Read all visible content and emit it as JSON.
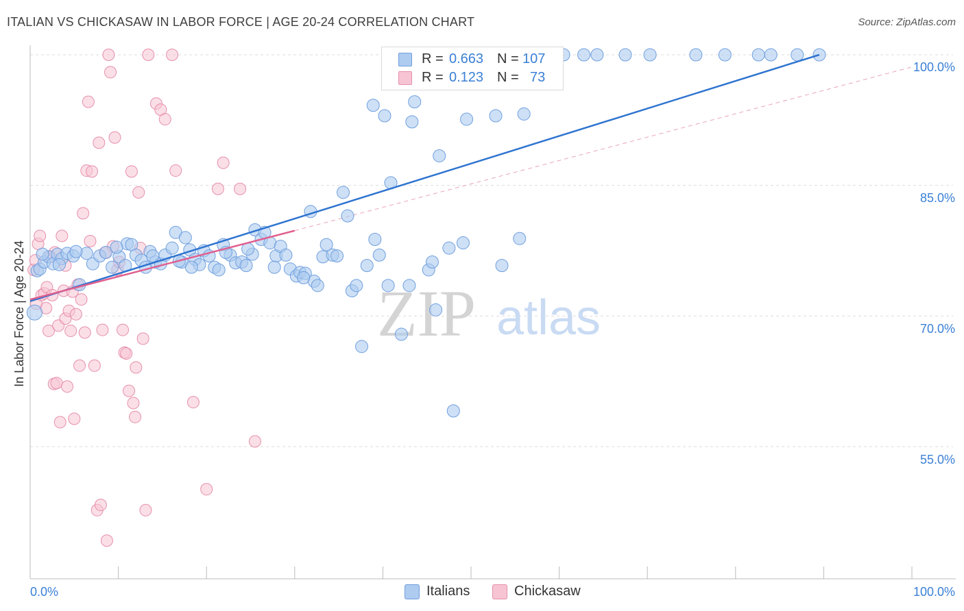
{
  "title": "ITALIAN VS CHICKASAW IN LABOR FORCE | AGE 20-24 CORRELATION CHART",
  "source": "Source: ZipAtlas.com",
  "watermark": {
    "zip": "ZIP",
    "atlas": "atlas"
  },
  "colors": {
    "italians_fill": "#aecbf0",
    "italians_stroke": "#6f9fde",
    "italians_line": "#2f74d0",
    "chickasaw_fill": "#f7c4d3",
    "chickasaw_stroke": "#e68fac",
    "chickasaw_line": "#e0608f",
    "axis_text": "#3a7fd5",
    "grid": "#dddddd"
  },
  "legend": {
    "italians": {
      "r_label": "R =",
      "r_value": "0.663",
      "n_label": "N =",
      "n_value": "107"
    },
    "chickasaw": {
      "r_label": "R =",
      "r_value": "0.123",
      "n_label": "N =",
      "n_value": "73"
    }
  },
  "bottom_legend": {
    "italians": "Italians",
    "chickasaw": "Chickasaw"
  },
  "chart_data": {
    "type": "scatter",
    "title": "ITALIAN VS CHICKASAW IN LABOR FORCE | AGE 20-24 CORRELATION CHART",
    "xlabel": "",
    "ylabel": "In Labor Force | Age 20-24",
    "xlim": [
      0,
      100
    ],
    "ylim": [
      40,
      101.5
    ],
    "x_tick_labels": [
      "0.0%",
      "100.0%"
    ],
    "y_tick_labels": [
      "55.0%",
      "70.0%",
      "85.0%",
      "100.0%"
    ],
    "y_ticks": [
      55,
      70,
      85,
      100
    ],
    "grid": true,
    "legend_position": "top-center",
    "series": [
      {
        "name": "Italians",
        "r": 0.663,
        "n": 107,
        "trend": {
          "x0": 0,
          "y0": 71.7,
          "x1": 89.5,
          "y1": 100
        },
        "points": [
          [
            0.5,
            70.4
          ],
          [
            0.8,
            75.2
          ],
          [
            1.1,
            75.4
          ],
          [
            1.6,
            76.2
          ],
          [
            2.1,
            76.8
          ],
          [
            2.6,
            76.0
          ],
          [
            3.1,
            77.1
          ],
          [
            3.6,
            76.6
          ],
          [
            4.2,
            77.2
          ],
          [
            4.9,
            76.9
          ],
          [
            5.6,
            73.6
          ],
          [
            6.4,
            77.2
          ],
          [
            7.1,
            76.0
          ],
          [
            7.9,
            76.9
          ],
          [
            8.6,
            77.3
          ],
          [
            9.3,
            75.6
          ],
          [
            10.1,
            76.8
          ],
          [
            10.8,
            75.8
          ],
          [
            11.0,
            78.3
          ],
          [
            11.5,
            78.2
          ],
          [
            12.0,
            77.0
          ],
          [
            12.6,
            76.4
          ],
          [
            13.1,
            75.6
          ],
          [
            13.6,
            77.4
          ],
          [
            14.2,
            76.2
          ],
          [
            14.8,
            76.0
          ],
          [
            15.3,
            77.0
          ],
          [
            16.1,
            77.8
          ],
          [
            16.5,
            79.6
          ],
          [
            17.2,
            76.2
          ],
          [
            17.6,
            79.0
          ],
          [
            18.1,
            77.6
          ],
          [
            18.7,
            76.5
          ],
          [
            19.2,
            75.9
          ],
          [
            19.7,
            77.5
          ],
          [
            20.3,
            76.9
          ],
          [
            20.9,
            75.6
          ],
          [
            21.4,
            75.3
          ],
          [
            21.9,
            78.2
          ],
          [
            22.7,
            77.0
          ],
          [
            23.3,
            76.1
          ],
          [
            24.0,
            76.2
          ],
          [
            24.5,
            75.8
          ],
          [
            25.2,
            77.1
          ],
          [
            25.5,
            79.9
          ],
          [
            26.2,
            78.8
          ],
          [
            26.6,
            79.6
          ],
          [
            27.2,
            78.4
          ],
          [
            27.9,
            76.9
          ],
          [
            28.4,
            78.0
          ],
          [
            29.0,
            77.0
          ],
          [
            29.5,
            75.4
          ],
          [
            30.2,
            74.6
          ],
          [
            30.6,
            75.0
          ],
          [
            31.2,
            74.9
          ],
          [
            31.8,
            82.0
          ],
          [
            32.2,
            74.0
          ],
          [
            32.6,
            73.5
          ],
          [
            33.2,
            76.8
          ],
          [
            33.6,
            78.2
          ],
          [
            34.3,
            77.0
          ],
          [
            34.8,
            76.9
          ],
          [
            35.5,
            84.2
          ],
          [
            36.0,
            81.5
          ],
          [
            36.5,
            72.9
          ],
          [
            37.0,
            73.5
          ],
          [
            37.6,
            66.5
          ],
          [
            38.2,
            75.8
          ],
          [
            38.9,
            94.2
          ],
          [
            39.1,
            78.8
          ],
          [
            39.6,
            77.0
          ],
          [
            40.2,
            93.0
          ],
          [
            40.6,
            73.5
          ],
          [
            40.9,
            85.3
          ],
          [
            42.1,
            67.9
          ],
          [
            43.0,
            73.5
          ],
          [
            43.3,
            92.3
          ],
          [
            43.6,
            94.6
          ],
          [
            45.2,
            75.3
          ],
          [
            45.6,
            76.2
          ],
          [
            46.0,
            70.7
          ],
          [
            46.4,
            88.4
          ],
          [
            48.0,
            59.1
          ],
          [
            49.1,
            78.4
          ],
          [
            49.5,
            92.6
          ],
          [
            52.8,
            93.0
          ],
          [
            53.5,
            75.8
          ],
          [
            55.5,
            78.9
          ],
          [
            56.0,
            93.2
          ],
          [
            47.5,
            77.8
          ],
          [
            58.0,
            100
          ],
          [
            60.5,
            100
          ],
          [
            62.8,
            100
          ],
          [
            64.3,
            100
          ],
          [
            67.5,
            100
          ],
          [
            70.3,
            100
          ],
          [
            75.5,
            100
          ],
          [
            78.8,
            100
          ],
          [
            82.6,
            100
          ],
          [
            84.0,
            100
          ],
          [
            87.0,
            100
          ],
          [
            89.5,
            100
          ],
          [
            1.4,
            77.1
          ],
          [
            3.3,
            75.9
          ],
          [
            5.2,
            77.4
          ],
          [
            9.8,
            77.9
          ],
          [
            13.9,
            76.9
          ],
          [
            16.9,
            76.3
          ],
          [
            18.3,
            75.6
          ],
          [
            22.2,
            77.3
          ],
          [
            24.7,
            77.7
          ],
          [
            27.7,
            75.6
          ],
          [
            31.0,
            74.4
          ]
        ]
      },
      {
        "name": "Chickasaw",
        "r": 0.123,
        "n": 73,
        "trend": {
          "x0": 0,
          "y0": 71.9,
          "x1": 30.0,
          "y1": 79.8
        },
        "points": [
          [
            0.4,
            75.3
          ],
          [
            0.6,
            76.4
          ],
          [
            0.9,
            78.3
          ],
          [
            1.1,
            79.2
          ],
          [
            1.3,
            72.4
          ],
          [
            1.6,
            72.6
          ],
          [
            1.9,
            73.3
          ],
          [
            2.1,
            68.3
          ],
          [
            2.3,
            76.8
          ],
          [
            2.5,
            72.4
          ],
          [
            2.7,
            62.2
          ],
          [
            3.0,
            62.3
          ],
          [
            3.2,
            68.9
          ],
          [
            3.4,
            57.8
          ],
          [
            3.6,
            79.2
          ],
          [
            3.8,
            72.9
          ],
          [
            4.0,
            69.7
          ],
          [
            4.2,
            61.9
          ],
          [
            4.4,
            70.6
          ],
          [
            4.6,
            68.3
          ],
          [
            4.8,
            72.8
          ],
          [
            5.0,
            58.2
          ],
          [
            5.2,
            70.2
          ],
          [
            5.4,
            73.6
          ],
          [
            5.6,
            64.3
          ],
          [
            5.8,
            71.9
          ],
          [
            6.0,
            81.8
          ],
          [
            6.2,
            68.1
          ],
          [
            6.4,
            86.7
          ],
          [
            6.6,
            94.6
          ],
          [
            6.8,
            78.6
          ],
          [
            7.0,
            86.6
          ],
          [
            7.3,
            64.3
          ],
          [
            7.6,
            47.7
          ],
          [
            7.8,
            89.9
          ],
          [
            8.0,
            48.3
          ],
          [
            8.2,
            68.4
          ],
          [
            8.5,
            77.3
          ],
          [
            8.7,
            44.2
          ],
          [
            8.9,
            100
          ],
          [
            9.1,
            98.0
          ],
          [
            9.4,
            78.0
          ],
          [
            9.6,
            90.5
          ],
          [
            9.9,
            75.3
          ],
          [
            10.1,
            76.2
          ],
          [
            10.5,
            68.4
          ],
          [
            10.7,
            65.8
          ],
          [
            10.9,
            65.7
          ],
          [
            11.2,
            61.4
          ],
          [
            11.5,
            86.6
          ],
          [
            11.7,
            60.0
          ],
          [
            11.9,
            58.4
          ],
          [
            12.0,
            64.1
          ],
          [
            12.3,
            84.2
          ],
          [
            12.8,
            67.4
          ],
          [
            13.1,
            47.7
          ],
          [
            13.4,
            100
          ],
          [
            14.3,
            94.4
          ],
          [
            14.8,
            93.7
          ],
          [
            15.3,
            92.6
          ],
          [
            16.1,
            100
          ],
          [
            16.5,
            86.7
          ],
          [
            18.5,
            60.1
          ],
          [
            20.0,
            50.1
          ],
          [
            21.3,
            84.6
          ],
          [
            21.9,
            87.6
          ],
          [
            23.8,
            84.6
          ],
          [
            25.5,
            55.6
          ],
          [
            4.0,
            75.8
          ],
          [
            2.8,
            77.3
          ],
          [
            1.8,
            70.9
          ],
          [
            0.7,
            71.4
          ],
          [
            12.5,
            77.8
          ]
        ]
      }
    ]
  }
}
